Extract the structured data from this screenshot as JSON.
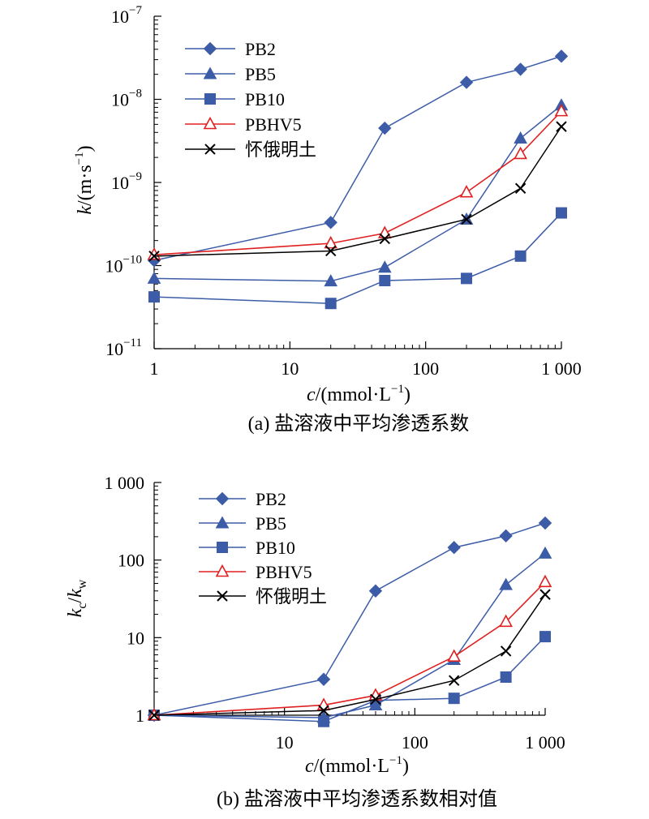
{
  "chart_data": [
    {
      "id": "a",
      "type": "line",
      "caption": "(a) 盐溶液中平均渗透系数",
      "xlabel": "c/(mmol·L⁻¹)",
      "ylabel": "k/(m·s⁻¹)",
      "x_scale": "log",
      "y_scale": "log",
      "xlim": [
        1,
        1000
      ],
      "ylim": [
        1e-11,
        1e-07
      ],
      "grid": false,
      "legend_position": "top-left",
      "x_ticks": [
        {
          "value": 1,
          "label": "1"
        },
        {
          "value": 10,
          "label": "10"
        },
        {
          "value": 100,
          "label": "100"
        },
        {
          "value": 1000,
          "label": "1 000"
        }
      ],
      "y_ticks": [
        {
          "value": 1e-11,
          "mant": "10",
          "exp": "−11"
        },
        {
          "value": 1e-10,
          "mant": "10",
          "exp": "−10"
        },
        {
          "value": 1e-09,
          "mant": "10",
          "exp": "−9"
        },
        {
          "value": 1e-08,
          "mant": "10",
          "exp": "−8"
        },
        {
          "value": 1e-07,
          "mant": "10",
          "exp": "−7"
        }
      ],
      "series": [
        {
          "name": "PB2",
          "marker": "diamond",
          "color": "#3d5ca8",
          "x": [
            1,
            20,
            50,
            200,
            500,
            1000
          ],
          "y": [
            1.15e-10,
            3.3e-10,
            4.5e-09,
            1.6e-08,
            2.3e-08,
            3.3e-08
          ]
        },
        {
          "name": "PB5",
          "marker": "triangle",
          "color": "#3d5ca8",
          "x": [
            1,
            20,
            50,
            200,
            500,
            1000
          ],
          "y": [
            7e-11,
            6.5e-11,
            9.5e-11,
            3.6e-10,
            3.4e-09,
            8.5e-09
          ]
        },
        {
          "name": "PB10",
          "marker": "square",
          "color": "#3d5ca8",
          "x": [
            1,
            20,
            50,
            200,
            500,
            1000
          ],
          "y": [
            4.2e-11,
            3.5e-11,
            6.6e-11,
            7e-11,
            1.3e-10,
            4.3e-10
          ]
        },
        {
          "name": "PBHV5",
          "marker": "triangle-open",
          "color": "#e02020",
          "x": [
            1,
            20,
            50,
            200,
            500,
            1000
          ],
          "y": [
            1.35e-10,
            1.85e-10,
            2.45e-10,
            7.6e-10,
            2.2e-09,
            7.2e-09
          ]
        },
        {
          "name": "怀俄明土",
          "marker": "x",
          "color": "#000000",
          "x": [
            1,
            20,
            50,
            200,
            500,
            1000
          ],
          "y": [
            1.3e-10,
            1.5e-10,
            2.1e-10,
            3.6e-10,
            8.5e-10,
            4.7e-09
          ]
        }
      ]
    },
    {
      "id": "b",
      "type": "line",
      "caption": "(b) 盐溶液中平均渗透系数相对值",
      "xlabel": "c/(mmol·L⁻¹)",
      "ylabel": "kc/kw",
      "x_scale": "log",
      "y_scale": "log",
      "xlim": [
        1,
        1000
      ],
      "ylim": [
        1,
        1000
      ],
      "grid": false,
      "legend_position": "top-left",
      "x_ticks": [
        {
          "value": 10,
          "label": "10"
        },
        {
          "value": 100,
          "label": "100"
        },
        {
          "value": 1000,
          "label": "1 000"
        }
      ],
      "y_ticks": [
        {
          "value": 1,
          "label": "1"
        },
        {
          "value": 10,
          "label": "10"
        },
        {
          "value": 100,
          "label": "100"
        },
        {
          "value": 1000,
          "label": "1 000"
        }
      ],
      "series": [
        {
          "name": "PB2",
          "marker": "diamond",
          "color": "#3d5ca8",
          "x": [
            1,
            20,
            50,
            200,
            500,
            1000
          ],
          "y": [
            1.0,
            2.9,
            40,
            145,
            205,
            300
          ]
        },
        {
          "name": "PB5",
          "marker": "triangle",
          "color": "#3d5ca8",
          "x": [
            1,
            20,
            50,
            200,
            500,
            1000
          ],
          "y": [
            1.0,
            0.93,
            1.35,
            5.2,
            48,
            122
          ]
        },
        {
          "name": "PB10",
          "marker": "square",
          "color": "#3d5ca8",
          "x": [
            1,
            20,
            50,
            200,
            500,
            1000
          ],
          "y": [
            1.0,
            0.83,
            1.55,
            1.65,
            3.1,
            10.3
          ]
        },
        {
          "name": "PBHV5",
          "marker": "triangle-open",
          "color": "#e02020",
          "x": [
            1,
            20,
            50,
            200,
            500,
            1000
          ],
          "y": [
            1.0,
            1.35,
            1.8,
            5.7,
            16,
            52
          ]
        },
        {
          "name": "怀俄明土",
          "marker": "x",
          "color": "#000000",
          "x": [
            1,
            20,
            50,
            200,
            500,
            1000
          ],
          "y": [
            1.0,
            1.15,
            1.6,
            2.8,
            6.7,
            36
          ]
        }
      ]
    }
  ]
}
